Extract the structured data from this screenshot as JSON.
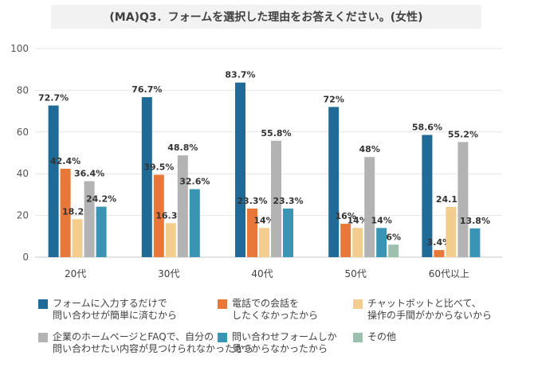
{
  "chart_data": {
    "type": "bar",
    "title": "(MA)Q3．フォームを選択した理由をお答えください。(女性)",
    "categories": [
      "20代",
      "30代",
      "40代",
      "50代",
      "60代以上"
    ],
    "ylim": [
      0,
      100
    ],
    "yticks": [
      0,
      20,
      40,
      60,
      80,
      100
    ],
    "grid": true,
    "value_suffix": "%",
    "series": [
      {
        "name": "フォームに入力するだけで\n問い合わせが簡単に済むから",
        "color": "#1f6a96",
        "values": [
          72.7,
          76.7,
          83.7,
          72,
          58.6
        ]
      },
      {
        "name": "電話での会話を\nしたくなかったから",
        "color": "#e8773a",
        "values": [
          42.4,
          39.5,
          23.3,
          16,
          3.4
        ]
      },
      {
        "name": "チャットボットと比べて、\n操作の手間がかからないから",
        "color": "#f2cd8e",
        "values": [
          18.2,
          16.3,
          14,
          14,
          24.1
        ]
      },
      {
        "name": "企業のホームページとFAQで、自分の\n問い合わせたい内容が見つけられなかったから",
        "color": "#b3b3b3",
        "values": [
          36.4,
          48.8,
          55.8,
          48,
          55.2
        ]
      },
      {
        "name": "問い合わせフォームしか\n見つからなかったから",
        "color": "#3a94b3",
        "values": [
          24.2,
          32.6,
          23.3,
          14,
          13.8
        ]
      },
      {
        "name": "その他",
        "color": "#9dbfae",
        "values": [
          0,
          0,
          0,
          6,
          0
        ]
      }
    ]
  }
}
